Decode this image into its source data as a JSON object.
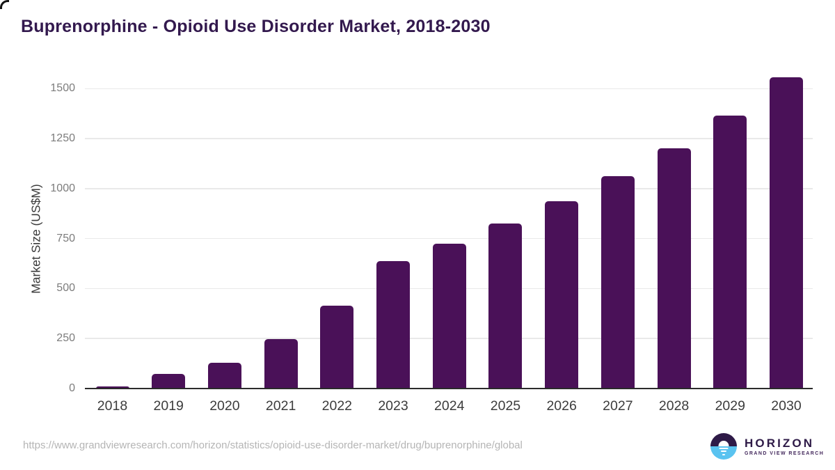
{
  "title": "Buprenorphine - Opioid Use Disorder Market, 2018-2030",
  "chart_data": {
    "type": "bar",
    "title": "Buprenorphine - Opioid Use Disorder Market, 2018-2030",
    "xlabel": "",
    "ylabel": "Market Size (US$M)",
    "categories": [
      "2018",
      "2019",
      "2020",
      "2021",
      "2022",
      "2023",
      "2024",
      "2025",
      "2026",
      "2027",
      "2028",
      "2029",
      "2030"
    ],
    "values": [
      12,
      73,
      128,
      246,
      416,
      637,
      724,
      826,
      936,
      1061,
      1203,
      1366,
      1556
    ],
    "ylim": [
      0,
      1500
    ],
    "yticks": [
      0,
      250,
      500,
      750,
      1000,
      1250,
      1500
    ],
    "grid": true,
    "legend": false,
    "bar_color": "#4a1158"
  },
  "footer": {
    "source_url": "https://www.grandviewresearch.com/horizon/statistics/opioid-use-disorder-market/drug/buprenorphine/global"
  },
  "logo": {
    "brand": "HORIZON",
    "tagline": "GRAND VIEW RESEARCH"
  },
  "colors": {
    "bar": "#4a1158",
    "title": "#33194e",
    "logo_dark": "#2e1a47",
    "logo_blue": "#5ac3f0",
    "axis": "#2b2b2b",
    "grid": "#e9e9e9",
    "x_label": "#3c3c3c",
    "y_label": "#7c7c7c",
    "url": "#b5b5b5"
  }
}
